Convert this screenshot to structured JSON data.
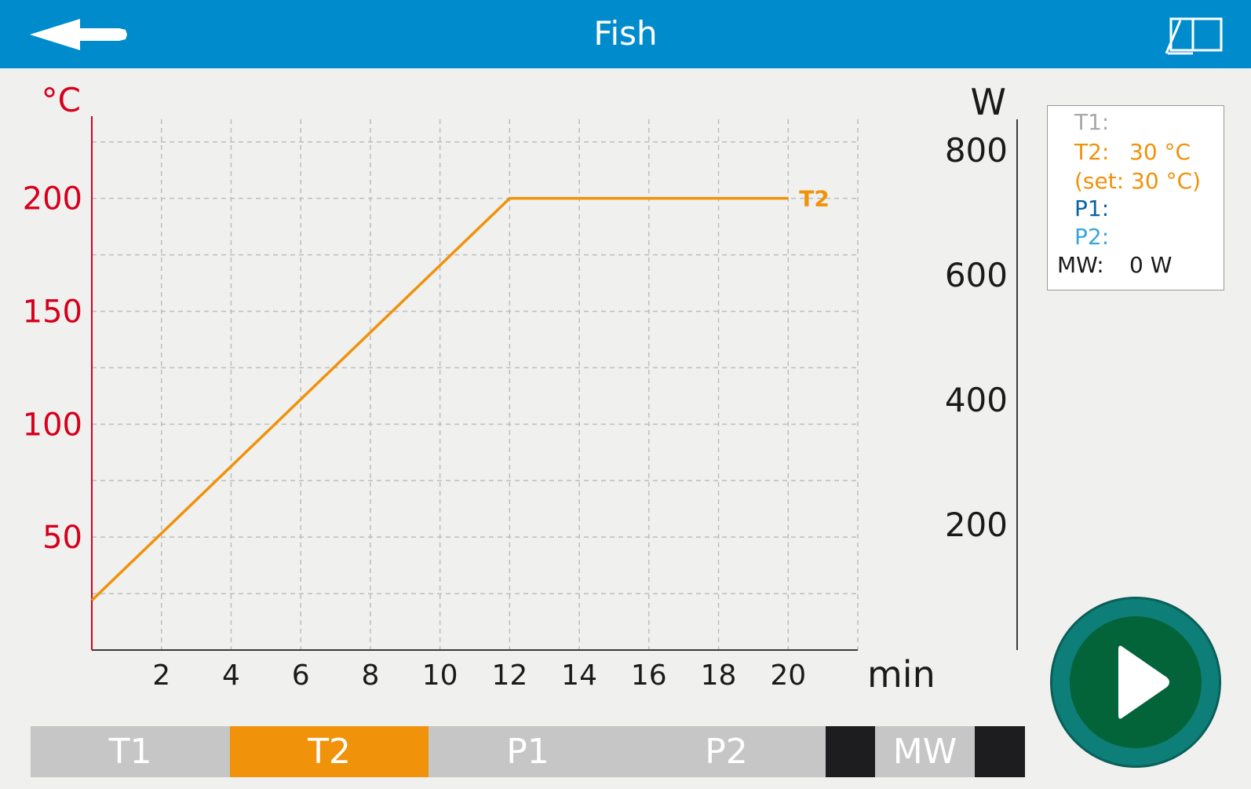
{
  "header": {
    "title": "Fish",
    "back_icon": "back-arrow-icon",
    "manual_icon": "open-book-icon",
    "color": "#008ccc"
  },
  "chart_data": {
    "type": "line",
    "x": [
      0,
      12,
      20
    ],
    "series": [
      {
        "name": "T2",
        "values": [
          22,
          200,
          200
        ],
        "color": "#f0920a"
      }
    ],
    "xlabel": "min",
    "ylabel": "°C",
    "y2label": "W",
    "xlim": [
      0,
      22
    ],
    "ylim": [
      0,
      235
    ],
    "y2lim": [
      0,
      850
    ],
    "xticks": [
      "2",
      "4",
      "6",
      "8",
      "10",
      "12",
      "14",
      "16",
      "18",
      "20"
    ],
    "yticks": [
      "50",
      "100",
      "150",
      "200"
    ],
    "y2ticks": [
      "200",
      "400",
      "600",
      "800"
    ],
    "grid": true,
    "y_axis_color": "#d6001c"
  },
  "legend": {
    "t1": {
      "label": "T1:",
      "value": "",
      "color": "#a8a8a8"
    },
    "t2": {
      "label": "T2:",
      "value": "30 °C",
      "color": "#f0920a"
    },
    "t2_set": {
      "text": "(set: 30 °C)",
      "color": "#f0920a"
    },
    "p1": {
      "label": "P1:",
      "value": "",
      "color": "#0a62a5"
    },
    "p2": {
      "label": "P2:",
      "value": "",
      "color": "#3aa6d8"
    },
    "mw": {
      "label": "MW:",
      "value": "0 W",
      "color": "#1a1a1a"
    }
  },
  "start_button": {
    "icon": "play-icon"
  },
  "tabs": [
    {
      "label": "T1",
      "active": false
    },
    {
      "label": "T2",
      "active": true
    },
    {
      "label": "P1",
      "active": false
    },
    {
      "label": "P2",
      "active": false
    },
    {
      "label": "MW",
      "active": false
    }
  ],
  "colors": {
    "tab_inactive": "#c6c6c6",
    "tab_active": "#f0920a",
    "tab_dark": "#1d1d20"
  }
}
